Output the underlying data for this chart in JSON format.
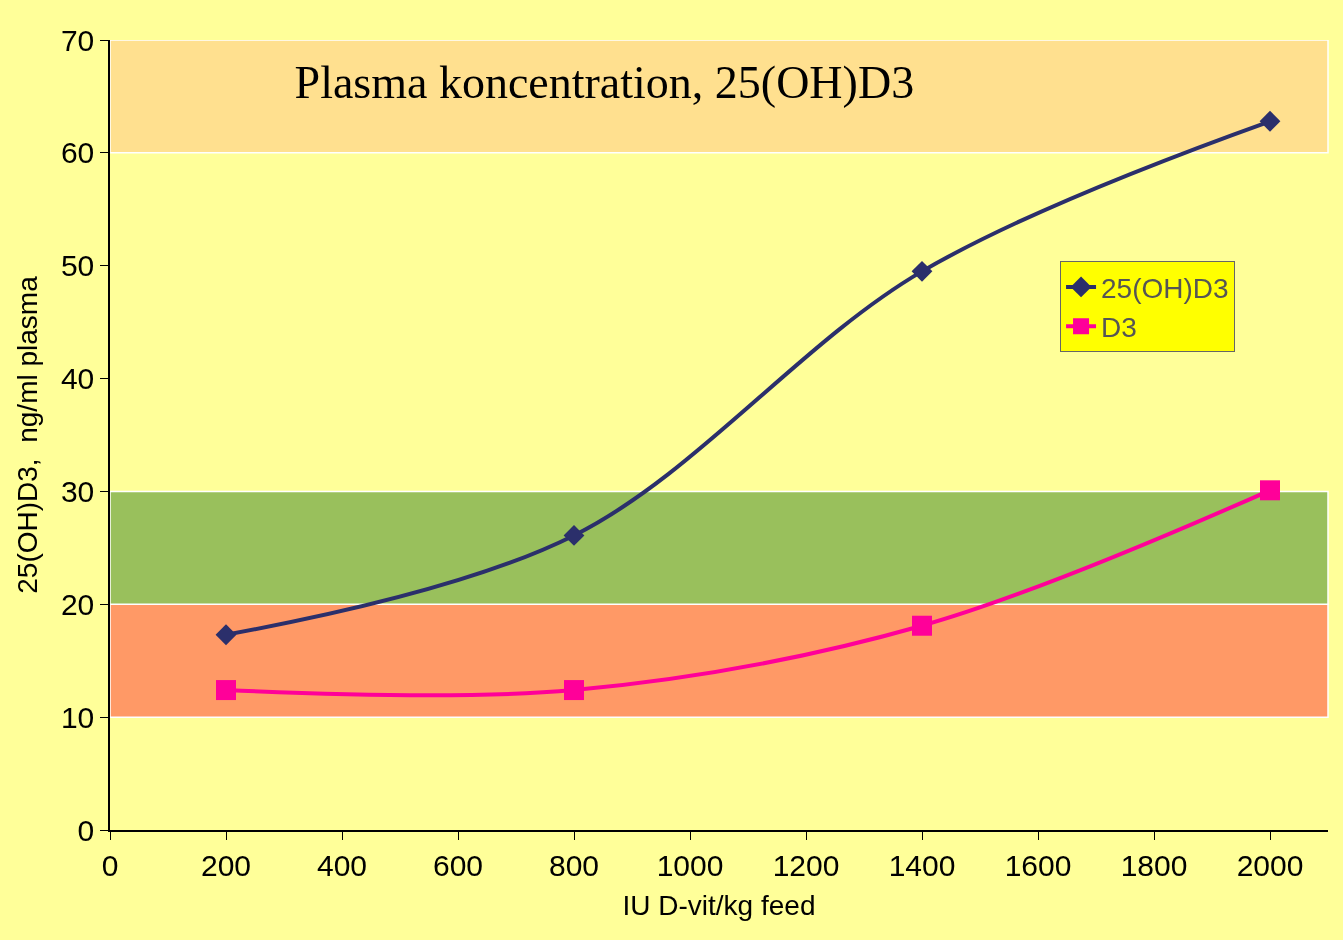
{
  "chart_data": {
    "type": "line",
    "title": "Plasma koncentration, 25(OH)D3",
    "xlabel": "IU D-vit/kg feed",
    "ylabel": "25(OH)D3,  ng/ml plasma",
    "x": [
      200,
      800,
      1400,
      2000
    ],
    "series": [
      {
        "name": "25(OH)D3",
        "color": "#2b2f6b",
        "values": [
          17.3,
          26.1,
          49.5,
          62.8
        ],
        "marker": "diamond"
      },
      {
        "name": "D3",
        "color": "#ff0099",
        "values": [
          12.4,
          12.4,
          18.1,
          30.1
        ],
        "marker": "square"
      }
    ],
    "xlim": [
      0,
      2100
    ],
    "xticks": [
      0,
      200,
      400,
      600,
      800,
      1000,
      1200,
      1400,
      1600,
      1800,
      2000
    ],
    "ylim": [
      0,
      70
    ],
    "yticks": [
      0,
      10,
      20,
      30,
      40,
      50,
      60,
      70
    ],
    "bands": [
      {
        "axis": "y",
        "from": 10,
        "to": 20,
        "color": "#ff9966"
      },
      {
        "axis": "y",
        "from": 20,
        "to": 30,
        "color": "#99c05c"
      },
      {
        "axis": "y",
        "from": 60,
        "to": 70,
        "color": "#ffe08f"
      }
    ],
    "grid": false,
    "legend": "right",
    "line_style": "solid"
  }
}
